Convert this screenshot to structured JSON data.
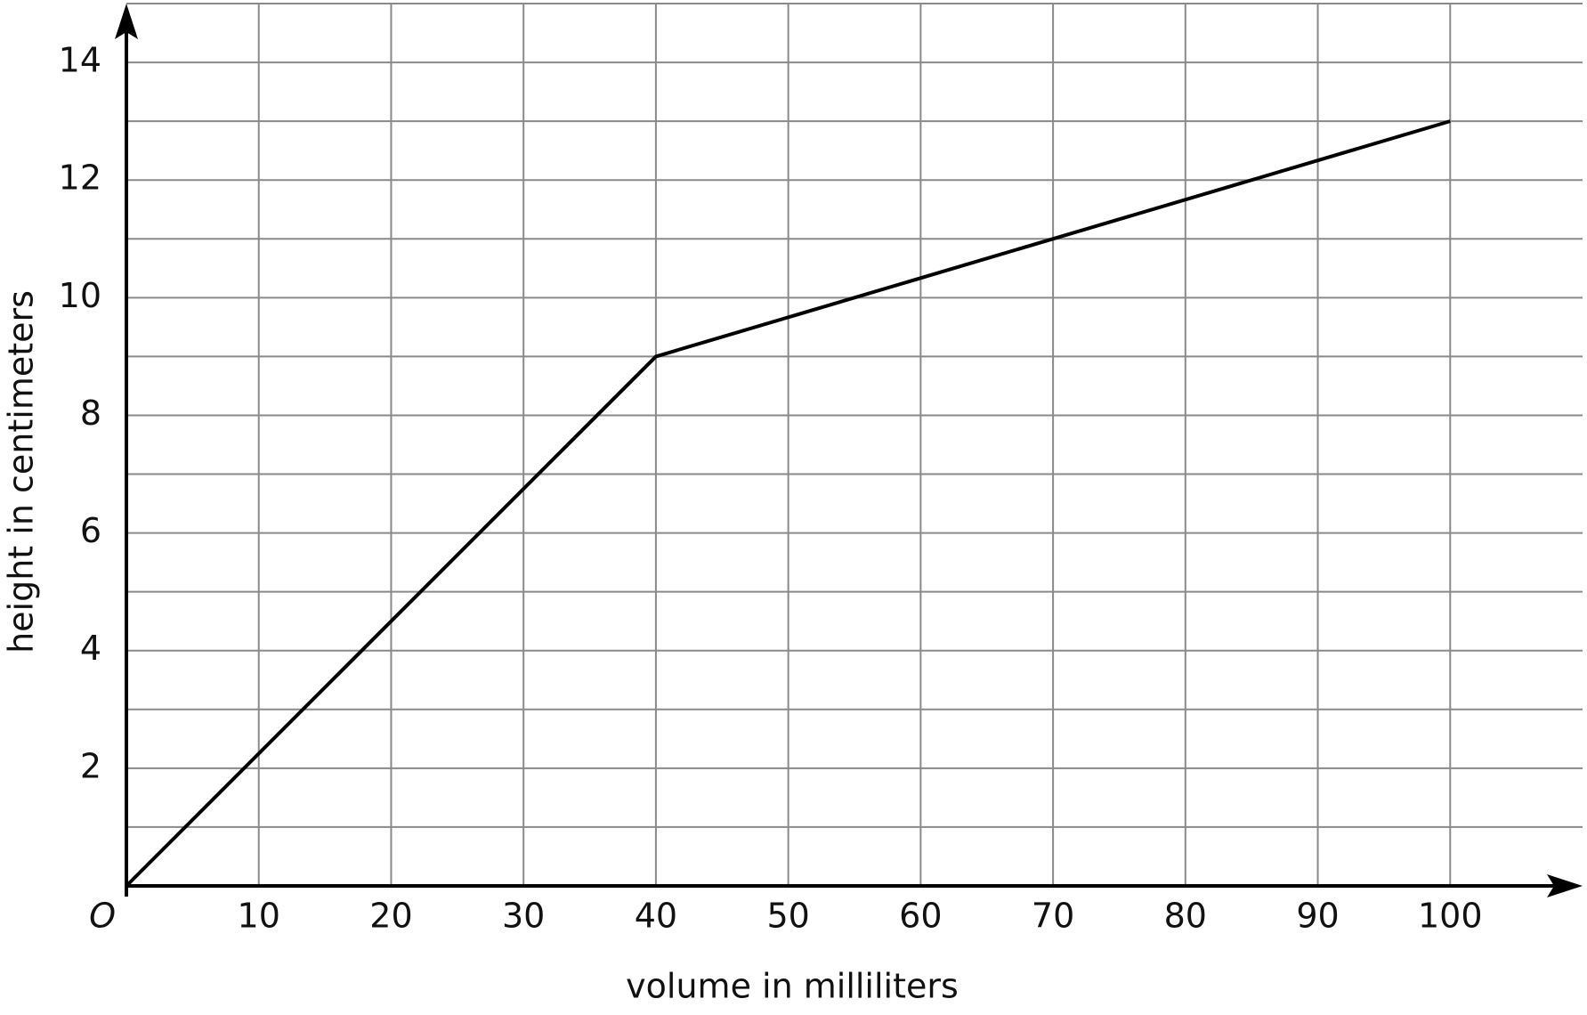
{
  "chart_data": {
    "type": "line",
    "x_label": "volume in milliliters",
    "y_label": "height in centimeters",
    "x": [
      0,
      40,
      100
    ],
    "series": [
      {
        "color": "#000000",
        "values": [
          0,
          9,
          13
        ]
      }
    ],
    "xlim": [
      0,
      110
    ],
    "ylim": [
      0,
      15
    ],
    "xticks": [
      {
        "value": 0,
        "label": "O"
      },
      10,
      20,
      30,
      40,
      50,
      60,
      70,
      80,
      90,
      100
    ],
    "yticks": [
      2,
      4,
      6,
      8,
      10,
      12,
      14
    ],
    "y_minor_ticks": [
      1,
      3,
      5,
      7,
      9,
      11,
      13,
      15
    ],
    "grid": true
  }
}
